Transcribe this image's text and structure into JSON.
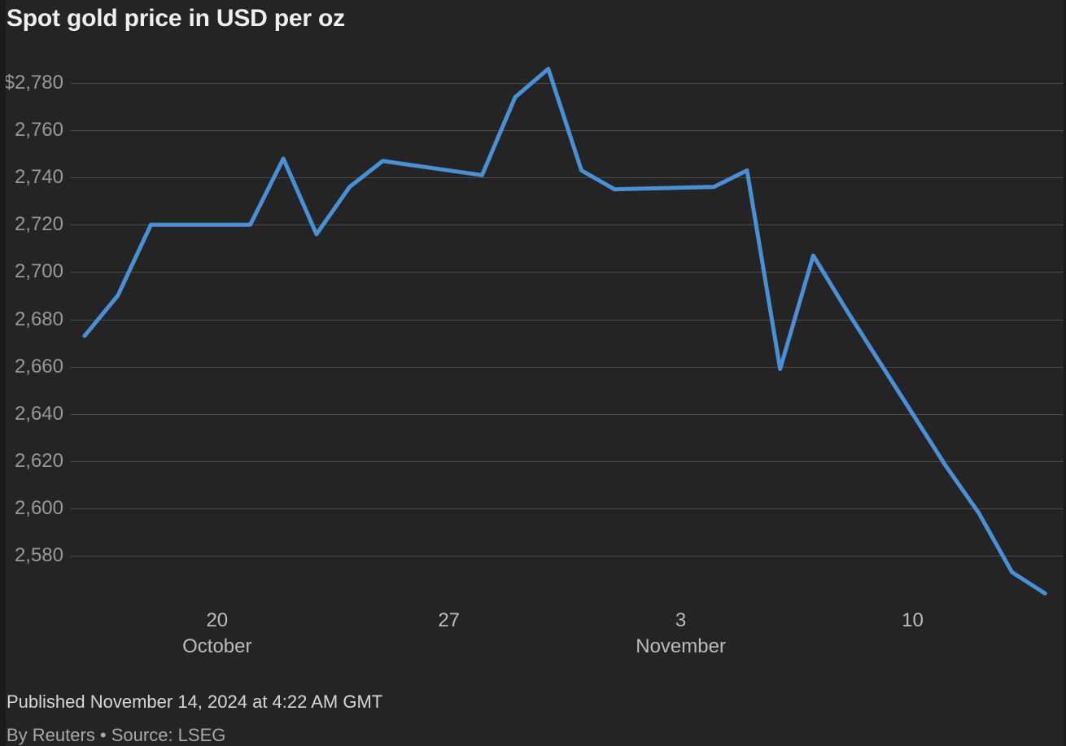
{
  "page": {
    "title": "Spot gold price in USD per oz",
    "published_line": "Published November 14, 2024 at 4:22 AM GMT",
    "byline": "By Reuters • Source: LSEG"
  },
  "colors": {
    "background": "#242424",
    "line": "#4891d6",
    "grid": "#4b4b4b",
    "title_text": "#efefef",
    "y_tick_text": "#999999",
    "x_tick_text": "#bcbcbc",
    "published_text": "#d6d6d6",
    "byline_text": "#a8a8a8"
  },
  "chart_data": {
    "type": "line",
    "title": "Spot gold price in USD per oz",
    "unit": "USD per oz",
    "legend": "none",
    "grid": "horizontal-only",
    "y_axis": {
      "range_shown": [
        2560,
        2795
      ],
      "ticks": [
        {
          "value": 2780,
          "label": "$2,780"
        },
        {
          "value": 2760,
          "label": "2,760"
        },
        {
          "value": 2740,
          "label": "2,740"
        },
        {
          "value": 2720,
          "label": "2,720"
        },
        {
          "value": 2700,
          "label": "2,700"
        },
        {
          "value": 2680,
          "label": "2,680"
        },
        {
          "value": 2660,
          "label": "2,660"
        },
        {
          "value": 2640,
          "label": "2,640"
        },
        {
          "value": 2620,
          "label": "2,620"
        },
        {
          "value": 2600,
          "label": "2,600"
        },
        {
          "value": 2580,
          "label": "2,580"
        }
      ]
    },
    "x_axis": {
      "start_label": "Oct 16",
      "end_label": "Nov 14",
      "ticks": [
        {
          "day_index": 4,
          "label": "20",
          "sublabel": "October"
        },
        {
          "day_index": 11,
          "label": "27",
          "sublabel": ""
        },
        {
          "day_index": 18,
          "label": "3",
          "sublabel": "November"
        },
        {
          "day_index": 25,
          "label": "10",
          "sublabel": ""
        }
      ]
    },
    "series": [
      {
        "name": "Spot gold price",
        "points": [
          {
            "date": "Oct 16",
            "day_index": 0,
            "value": 2673
          },
          {
            "date": "Oct 17",
            "day_index": 1,
            "value": 2690
          },
          {
            "date": "Oct 18",
            "day_index": 2,
            "value": 2720
          },
          {
            "date": "Oct 21",
            "day_index": 5,
            "value": 2720
          },
          {
            "date": "Oct 22",
            "day_index": 6,
            "value": 2748
          },
          {
            "date": "Oct 23",
            "day_index": 7,
            "value": 2716
          },
          {
            "date": "Oct 24",
            "day_index": 8,
            "value": 2736
          },
          {
            "date": "Oct 25",
            "day_index": 9,
            "value": 2747
          },
          {
            "date": "Oct 28",
            "day_index": 12,
            "value": 2741
          },
          {
            "date": "Oct 29",
            "day_index": 13,
            "value": 2774
          },
          {
            "date": "Oct 30",
            "day_index": 14,
            "value": 2786
          },
          {
            "date": "Oct 31",
            "day_index": 15,
            "value": 2743
          },
          {
            "date": "Nov 1",
            "day_index": 16,
            "value": 2735
          },
          {
            "date": "Nov 4",
            "day_index": 19,
            "value": 2736
          },
          {
            "date": "Nov 5",
            "day_index": 20,
            "value": 2743
          },
          {
            "date": "Nov 6",
            "day_index": 21,
            "value": 2659
          },
          {
            "date": "Nov 7",
            "day_index": 22,
            "value": 2707
          },
          {
            "date": "Nov 8",
            "day_index": 23,
            "value": 2684
          },
          {
            "date": "Nov 11",
            "day_index": 26,
            "value": 2618
          },
          {
            "date": "Nov 12",
            "day_index": 27,
            "value": 2598
          },
          {
            "date": "Nov 13",
            "day_index": 28,
            "value": 2573
          },
          {
            "date": "Nov 14",
            "day_index": 29,
            "value": 2564
          }
        ]
      }
    ]
  }
}
